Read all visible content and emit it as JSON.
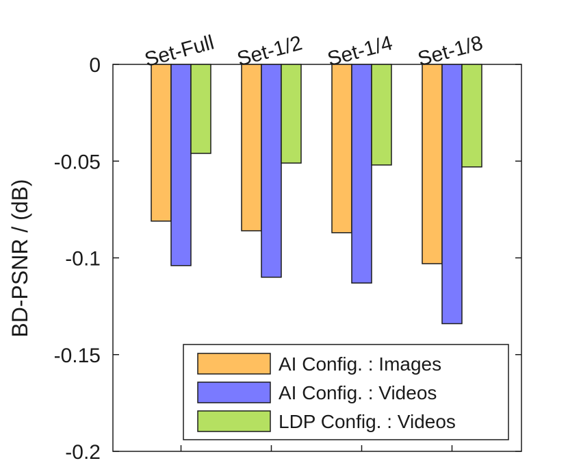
{
  "chart_data": {
    "type": "bar",
    "title": "",
    "xlabel": "",
    "ylabel": "BD-PSNR / (dB)",
    "ylim": [
      -0.2,
      0
    ],
    "yticks": [
      0,
      -0.05,
      -0.1,
      -0.15,
      -0.2
    ],
    "ytick_labels": [
      "0",
      "-0.05",
      "-0.1",
      "-0.15",
      "-0.2"
    ],
    "categories": [
      "Set-Full",
      "Set-1/2",
      "Set-1/4",
      "Set-1/8"
    ],
    "series": [
      {
        "name": "AI Config. : Images",
        "color": "#ffbf5f",
        "values": [
          -0.081,
          -0.086,
          -0.087,
          -0.103
        ]
      },
      {
        "name": "AI Config. : Videos",
        "color": "#7a7aff",
        "values": [
          -0.104,
          -0.11,
          -0.113,
          -0.134
        ]
      },
      {
        "name": "LDP Config. : Videos",
        "color": "#b5e061",
        "values": [
          -0.046,
          -0.051,
          -0.052,
          -0.053
        ]
      }
    ],
    "legend_position": "bottom-right",
    "grid": false
  }
}
